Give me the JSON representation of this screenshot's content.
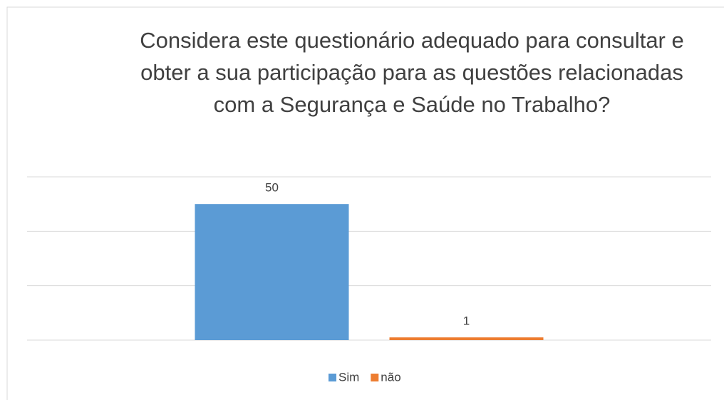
{
  "chart_data": {
    "type": "bar",
    "title": "Considera este questionário adequado para consultar e obter a sua participação para as questões relacionadas com a Segurança e Saúde no Trabalho?",
    "categories": [
      null
    ],
    "series": [
      {
        "name": "Sim",
        "color": "#5b9bd5",
        "values": [
          50
        ]
      },
      {
        "name": "não",
        "color": "#ed7d31",
        "values": [
          1
        ]
      }
    ],
    "ylim": [
      0,
      60
    ],
    "yticks": [
      0,
      20,
      40,
      60
    ],
    "grid": true,
    "legend": "bottom"
  }
}
